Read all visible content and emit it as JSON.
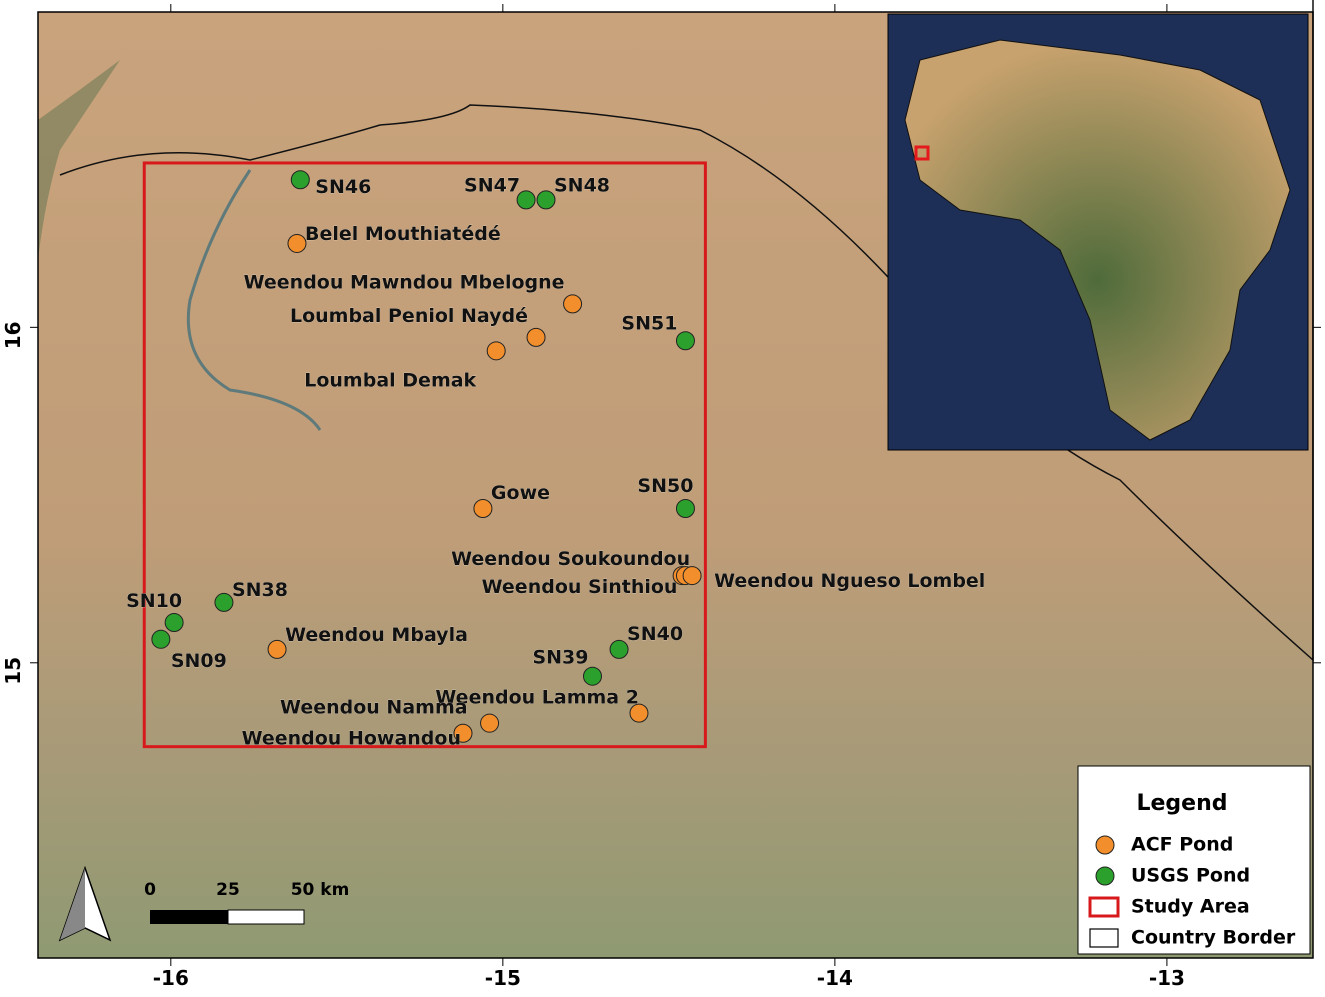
{
  "map": {
    "xlim": [
      -16.4,
      -12.56
    ],
    "ylim": [
      14.12,
      16.94
    ],
    "xticks": [
      -16,
      -15,
      -14,
      -13
    ],
    "yticks": [
      15,
      16
    ],
    "study_area": {
      "lon": [
        -16.08,
        -14.39
      ],
      "lat": [
        14.75,
        16.49
      ],
      "color": "#d7191c"
    },
    "points": [
      {
        "name": "SN46",
        "kind": "usgs",
        "lon": -15.61,
        "lat": 16.44
      },
      {
        "name": "SN47",
        "kind": "usgs",
        "lon": -14.93,
        "lat": 16.38
      },
      {
        "name": "SN48",
        "kind": "usgs",
        "lon": -14.87,
        "lat": 16.38
      },
      {
        "name": "Belel Mouthiatédé",
        "kind": "acf",
        "lon": -15.62,
        "lat": 16.25
      },
      {
        "name": "Weendou Mawndou Mbelogne",
        "kind": "acf",
        "lon": -14.79,
        "lat": 16.07
      },
      {
        "name": "Loumbal Peniol Naydé",
        "kind": "acf",
        "lon": -14.9,
        "lat": 15.97
      },
      {
        "name": "Loumbal Demak",
        "kind": "acf",
        "lon": -15.02,
        "lat": 15.93
      },
      {
        "name": "SN51",
        "kind": "usgs",
        "lon": -14.45,
        "lat": 15.96
      },
      {
        "name": "Gowe",
        "kind": "acf",
        "lon": -15.06,
        "lat": 15.46
      },
      {
        "name": "SN50",
        "kind": "usgs",
        "lon": -14.45,
        "lat": 15.46
      },
      {
        "name": "Weendou Soukoundou",
        "kind": "acf",
        "lon": -14.46,
        "lat": 15.26
      },
      {
        "name": "Weendou Sinthiou",
        "kind": "acf",
        "lon": -14.45,
        "lat": 15.26
      },
      {
        "name": "Weendou Ngueso Lombel",
        "kind": "acf",
        "lon": -14.43,
        "lat": 15.26
      },
      {
        "name": "SN38",
        "kind": "usgs",
        "lon": -15.84,
        "lat": 15.18
      },
      {
        "name": "SN10",
        "kind": "usgs",
        "lon": -15.99,
        "lat": 15.12
      },
      {
        "name": "SN09",
        "kind": "usgs",
        "lon": -16.03,
        "lat": 15.07
      },
      {
        "name": "Weendou Mbayla",
        "kind": "acf",
        "lon": -15.68,
        "lat": 15.04
      },
      {
        "name": "SN40",
        "kind": "usgs",
        "lon": -14.65,
        "lat": 15.04
      },
      {
        "name": "SN39",
        "kind": "usgs",
        "lon": -14.73,
        "lat": 14.96
      },
      {
        "name": "Weendou Lamma 2",
        "kind": "acf",
        "lon": -14.59,
        "lat": 14.85
      },
      {
        "name": "Weendou Namma",
        "kind": "acf",
        "lon": -15.04,
        "lat": 14.82
      },
      {
        "name": "Weendou Howandou",
        "kind": "acf",
        "lon": -15.12,
        "lat": 14.79
      }
    ],
    "colors": {
      "acf": "#f28e2b",
      "usgs": "#2ca02c"
    },
    "scale_bar": [
      "0",
      "25",
      "50 km"
    ],
    "legend": {
      "title": "Legend",
      "items": [
        "ACF Pond",
        "USGS Pond",
        "Study Area",
        "Country Border"
      ]
    }
  }
}
